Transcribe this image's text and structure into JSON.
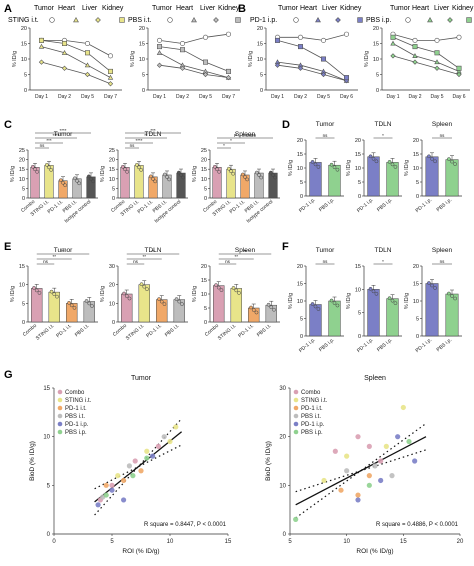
{
  "panel_letters": [
    "A",
    "B",
    "C",
    "D",
    "E",
    "F",
    "G"
  ],
  "colors": {
    "combo": "#d9a0b3",
    "sting": "#e8e48a",
    "pd1it": "#f0a868",
    "pbsit": "#bdbdbd",
    "isotype": "#555555",
    "pd1ip": "#7b7fc6",
    "pbsip": "#8fd18f",
    "line": "#555555"
  },
  "legends": {
    "a": {
      "group": "STING i.t.",
      "organs": [
        "Tumor",
        "Heart",
        "Liver",
        "Kidney"
      ]
    },
    "a2": {
      "group": "PBS i.t.",
      "organs": [
        "Tumor",
        "Heart",
        "Liver",
        "Kidney"
      ]
    },
    "b": {
      "group": "PD-1 i.p.",
      "organs": [
        "Tumor",
        "Heart",
        "Liver",
        "Kidney"
      ]
    },
    "b2": {
      "group": "PBS i.p.",
      "organs": [
        "Tumor",
        "Heart",
        "Liver",
        "Kidney"
      ]
    }
  },
  "g_legend": [
    "Combo",
    "STING i.t.",
    "PD-1 i.t.",
    "PBS i.t.",
    "PD-1 i.p.",
    "PBS i.p."
  ],
  "chart_data": [
    {
      "id": "A1",
      "type": "line",
      "panel": "A",
      "legend_group": "STING i.t.",
      "ylabel": "% ID/g",
      "categories": [
        "Day 1",
        "Day 2",
        "Day 5",
        "Day 7"
      ],
      "ylim": [
        0,
        20
      ],
      "yticks": [
        0,
        5,
        10,
        15,
        20
      ],
      "series": [
        {
          "name": "Tumor",
          "values": [
            16,
            16,
            15,
            11
          ]
        },
        {
          "name": "Heart",
          "values": [
            14,
            12,
            8,
            4
          ]
        },
        {
          "name": "Liver",
          "values": [
            9,
            7,
            5,
            2
          ]
        },
        {
          "name": "Kidney",
          "values": [
            16,
            15,
            12,
            6
          ]
        }
      ]
    },
    {
      "id": "A2",
      "type": "line",
      "panel": "A",
      "legend_group": "PBS i.t.",
      "ylabel": "% ID/g",
      "categories": [
        "Day 1",
        "Day 2",
        "Day 5",
        "Day 7"
      ],
      "ylim": [
        0,
        20
      ],
      "yticks": [
        0,
        5,
        10,
        15,
        20
      ],
      "series": [
        {
          "name": "Tumor",
          "values": [
            16,
            15,
            17,
            18
          ]
        },
        {
          "name": "Heart",
          "values": [
            12,
            8,
            6,
            4
          ]
        },
        {
          "name": "Liver",
          "values": [
            8,
            7,
            5,
            4
          ]
        },
        {
          "name": "Kidney",
          "values": [
            14,
            13,
            9,
            6
          ]
        }
      ]
    },
    {
      "id": "B1",
      "type": "line",
      "panel": "B",
      "legend_group": "PD-1 i.p.",
      "ylabel": "% ID/g",
      "categories": [
        "Day 1",
        "Day 2",
        "Day 5",
        "Day 6"
      ],
      "ylim": [
        0,
        20
      ],
      "yticks": [
        0,
        5,
        10,
        15,
        20
      ],
      "series": [
        {
          "name": "Tumor",
          "values": [
            17,
            17,
            16,
            18
          ]
        },
        {
          "name": "Heart",
          "values": [
            9,
            8,
            6,
            3
          ]
        },
        {
          "name": "Liver",
          "values": [
            8,
            7,
            5,
            3
          ]
        },
        {
          "name": "Kidney",
          "values": [
            16,
            14,
            10,
            4
          ]
        }
      ]
    },
    {
      "id": "B2",
      "type": "line",
      "panel": "B",
      "legend_group": "PBS i.p.",
      "ylabel": "% ID/g",
      "categories": [
        "Day 1",
        "Day 2",
        "Day 5",
        "Day 6"
      ],
      "ylim": [
        0,
        20
      ],
      "yticks": [
        0,
        5,
        10,
        15,
        20
      ],
      "series": [
        {
          "name": "Tumor",
          "values": [
            18,
            16,
            16,
            17
          ]
        },
        {
          "name": "Heart",
          "values": [
            15,
            11,
            9,
            6
          ]
        },
        {
          "name": "Liver",
          "values": [
            11,
            9,
            7,
            5
          ]
        },
        {
          "name": "Kidney",
          "values": [
            17,
            14,
            12,
            7
          ]
        }
      ]
    },
    {
      "id": "C1",
      "type": "bar",
      "panel": "C",
      "title": "Tumor",
      "ylabel": "% ID/g",
      "ylim": [
        0,
        25
      ],
      "yticks": [
        0,
        5,
        10,
        15,
        20,
        25
      ],
      "categories": [
        "Combo",
        "STING i.t.",
        "PD-1 i.t.",
        "PBS i.t.",
        "Isotype control"
      ],
      "values": [
        16,
        17,
        9,
        10,
        11
      ],
      "color_keys": [
        "combo",
        "sting",
        "pd1it",
        "pbsit",
        "isotype"
      ],
      "sig": [
        {
          "a": 0,
          "b": 1,
          "text": "ns"
        },
        {
          "a": 0,
          "b": 2,
          "text": "***"
        },
        {
          "a": 0,
          "b": 3,
          "text": "****"
        },
        {
          "a": 0,
          "b": 4,
          "text": "****"
        }
      ]
    },
    {
      "id": "C2",
      "type": "bar",
      "panel": "C",
      "title": "TDLN",
      "ylabel": "% ID/g",
      "ylim": [
        0,
        25
      ],
      "yticks": [
        0,
        5,
        10,
        15,
        20,
        25
      ],
      "categories": [
        "Combo",
        "STING i.t.",
        "PD-1 i.t.",
        "PBS i.t.",
        "Isotype control"
      ],
      "values": [
        16,
        17,
        11,
        12,
        13
      ],
      "color_keys": [
        "combo",
        "sting",
        "pd1it",
        "pbsit",
        "isotype"
      ],
      "sig": [
        {
          "a": 0,
          "b": 1,
          "text": "ns"
        },
        {
          "a": 0,
          "b": 2,
          "text": "****"
        },
        {
          "a": 0,
          "b": 3,
          "text": "**"
        },
        {
          "a": 0,
          "b": 4,
          "text": "***"
        }
      ]
    },
    {
      "id": "C3",
      "type": "bar",
      "panel": "C",
      "title": "Spleen",
      "ylabel": "% ID/g",
      "ylim": [
        0,
        25
      ],
      "yticks": [
        0,
        5,
        10,
        15,
        20,
        25
      ],
      "categories": [
        "Combo",
        "STING i.t.",
        "PD-1 i.t.",
        "PBS i.t.",
        "Isotype control"
      ],
      "values": [
        16,
        15,
        12,
        13,
        13
      ],
      "color_keys": [
        "combo",
        "sting",
        "pd1it",
        "pbsit",
        "isotype"
      ],
      "sig": [
        {
          "a": 0,
          "b": 1,
          "text": "*"
        },
        {
          "a": 0,
          "b": 2,
          "text": "*"
        },
        {
          "a": 0,
          "b": 4,
          "text": "P = 0.0809"
        }
      ]
    },
    {
      "id": "D1",
      "type": "bar",
      "panel": "D",
      "title": "Tumor",
      "ylabel": "% ID/g",
      "ylim": [
        0,
        20
      ],
      "yticks": [
        0,
        5,
        10,
        15,
        20
      ],
      "categories": [
        "PD-1 i.p.",
        "PBS i.p."
      ],
      "values": [
        12,
        11
      ],
      "color_keys": [
        "pd1ip",
        "pbsip"
      ],
      "sig": [
        {
          "a": 0,
          "b": 1,
          "text": "ns"
        }
      ]
    },
    {
      "id": "D2",
      "type": "bar",
      "panel": "D",
      "title": "TDLN",
      "ylabel": "% ID/g",
      "ylim": [
        0,
        20
      ],
      "yticks": [
        0,
        5,
        10,
        15,
        20
      ],
      "categories": [
        "PD-1 i.p.",
        "PBS i.p."
      ],
      "values": [
        14,
        12
      ],
      "color_keys": [
        "pd1ip",
        "pbsip"
      ],
      "sig": [
        {
          "a": 0,
          "b": 1,
          "text": "*"
        }
      ]
    },
    {
      "id": "D3",
      "type": "bar",
      "panel": "D",
      "title": "Spleen",
      "ylabel": "% ID/g",
      "ylim": [
        0,
        20
      ],
      "yticks": [
        0,
        5,
        10,
        15,
        20
      ],
      "categories": [
        "PD-1 i.p.",
        "PBS i.p."
      ],
      "values": [
        14,
        13
      ],
      "color_keys": [
        "pd1ip",
        "pbsip"
      ],
      "sig": [
        {
          "a": 0,
          "b": 1,
          "text": "ns"
        }
      ]
    },
    {
      "id": "E1",
      "type": "bar",
      "panel": "E",
      "title": "Tumor",
      "ylabel": "% ID/g",
      "ylim": [
        0,
        15
      ],
      "yticks": [
        0,
        5,
        10,
        15
      ],
      "categories": [
        "Combo",
        "STING i.t.",
        "PD-1 i.t.",
        "PBS i.t."
      ],
      "values": [
        9,
        8,
        5,
        5.5
      ],
      "color_keys": [
        "combo",
        "sting",
        "pd1it",
        "pbsit"
      ],
      "sig": [
        {
          "a": 0,
          "b": 1,
          "text": "ns"
        },
        {
          "a": 0,
          "b": 2,
          "text": "**"
        },
        {
          "a": 0,
          "b": 3,
          "text": "**"
        }
      ]
    },
    {
      "id": "E2",
      "type": "bar",
      "panel": "E",
      "title": "TDLN",
      "ylabel": "% ID/g",
      "ylim": [
        0,
        30
      ],
      "yticks": [
        0,
        10,
        20,
        30
      ],
      "categories": [
        "Combo",
        "STING i.t.",
        "PD-1 i.t.",
        "PBS i.t."
      ],
      "values": [
        15,
        20,
        12,
        12
      ],
      "color_keys": [
        "combo",
        "sting",
        "pd1it",
        "pbsit"
      ],
      "sig": [
        {
          "a": 0,
          "b": 1,
          "text": "ns"
        },
        {
          "a": 0,
          "b": 2,
          "text": "**"
        },
        {
          "a": 0,
          "b": 3,
          "text": "**"
        }
      ]
    },
    {
      "id": "E3",
      "type": "bar",
      "panel": "E",
      "title": "Spleen",
      "ylabel": "% ID/g",
      "ylim": [
        0,
        20
      ],
      "yticks": [
        0,
        5,
        10,
        15,
        20
      ],
      "categories": [
        "Combo",
        "STING i.t.",
        "PD-1 i.t.",
        "PBS i.t."
      ],
      "values": [
        13,
        12,
        5,
        6
      ],
      "color_keys": [
        "combo",
        "sting",
        "pd1it",
        "pbsit"
      ],
      "sig": [
        {
          "a": 0,
          "b": 1,
          "text": "ns"
        },
        {
          "a": 0,
          "b": 2,
          "text": "**"
        },
        {
          "a": 0,
          "b": 3,
          "text": "**"
        }
      ]
    },
    {
      "id": "F1",
      "type": "bar",
      "panel": "F",
      "title": "Tumor",
      "ylabel": "% ID/g",
      "ylim": [
        0,
        20
      ],
      "yticks": [
        0,
        5,
        10,
        15,
        20
      ],
      "categories": [
        "PD-1 i.p.",
        "PBS i.p."
      ],
      "values": [
        9,
        10
      ],
      "color_keys": [
        "pd1ip",
        "pbsip"
      ],
      "sig": [
        {
          "a": 0,
          "b": 1,
          "text": "ns"
        }
      ]
    },
    {
      "id": "F2",
      "type": "bar",
      "panel": "F",
      "title": "TDLN",
      "ylabel": "% ID/g",
      "ylim": [
        0,
        15
      ],
      "yticks": [
        0,
        5,
        10,
        15
      ],
      "categories": [
        "PD-1 i.p.",
        "PBS i.p."
      ],
      "values": [
        10,
        8
      ],
      "color_keys": [
        "pd1ip",
        "pbsip"
      ],
      "sig": [
        {
          "a": 0,
          "b": 1,
          "text": "*"
        }
      ]
    },
    {
      "id": "F3",
      "type": "bar",
      "panel": "F",
      "title": "Spleen",
      "ylabel": "% ID/g",
      "ylim": [
        0,
        20
      ],
      "yticks": [
        0,
        5,
        10,
        15,
        20
      ],
      "categories": [
        "PD-1 i.p.",
        "PBS i.p."
      ],
      "values": [
        15,
        12
      ],
      "color_keys": [
        "pd1ip",
        "pbsip"
      ],
      "sig": [
        {
          "a": 0,
          "b": 1,
          "text": "ns"
        }
      ]
    },
    {
      "id": "G1",
      "type": "scatter",
      "panel": "G",
      "title": "Tumor",
      "xlabel": "ROI (% ID/g)",
      "ylabel": "BioD (% ID/g)",
      "xlim": [
        0,
        15
      ],
      "ylim": [
        0,
        15
      ],
      "xticks": [
        0,
        5,
        10,
        15
      ],
      "yticks": [
        0,
        5,
        10,
        15
      ],
      "annotation": "R square = 0.8447, P < 0.0001",
      "fit": {
        "x0": 3.5,
        "y0": 3.3,
        "x1": 11,
        "y1": 10.5
      },
      "points": [
        {
          "x": 4,
          "y": 3.5,
          "g": "combo"
        },
        {
          "x": 5,
          "y": 5,
          "g": "combo"
        },
        {
          "x": 7,
          "y": 7.5,
          "g": "combo"
        },
        {
          "x": 9,
          "y": 9,
          "g": "combo"
        },
        {
          "x": 5.5,
          "y": 6,
          "g": "sting"
        },
        {
          "x": 8,
          "y": 8.5,
          "g": "sting"
        },
        {
          "x": 10,
          "y": 9.5,
          "g": "sting"
        },
        {
          "x": 10.5,
          "y": 11,
          "g": "sting"
        },
        {
          "x": 4.5,
          "y": 5,
          "g": "pd1it"
        },
        {
          "x": 6,
          "y": 5.5,
          "g": "pd1it"
        },
        {
          "x": 7.5,
          "y": 6.5,
          "g": "pd1it"
        },
        {
          "x": 4.2,
          "y": 3.8,
          "g": "pbsit"
        },
        {
          "x": 6.5,
          "y": 7,
          "g": "pbsit"
        },
        {
          "x": 9.5,
          "y": 10,
          "g": "pbsit"
        },
        {
          "x": 3.8,
          "y": 3,
          "g": "pd1ip"
        },
        {
          "x": 5,
          "y": 4.5,
          "g": "pd1ip"
        },
        {
          "x": 6,
          "y": 3.5,
          "g": "pd1ip"
        },
        {
          "x": 8.5,
          "y": 8,
          "g": "pd1ip"
        },
        {
          "x": 4.5,
          "y": 4,
          "g": "pbsip"
        },
        {
          "x": 6.8,
          "y": 6,
          "g": "pbsip"
        },
        {
          "x": 8,
          "y": 7.8,
          "g": "pbsip"
        }
      ]
    },
    {
      "id": "G2",
      "type": "scatter",
      "panel": "G",
      "title": "Spleen",
      "xlabel": "ROI (% ID/g)",
      "ylabel": "BioD (% ID/g)",
      "xlim": [
        5,
        20
      ],
      "ylim": [
        0,
        30
      ],
      "xticks": [
        5,
        10,
        15,
        20
      ],
      "yticks": [
        0,
        10,
        20,
        30
      ],
      "annotation": "R square = 0.4886, P < 0.0001",
      "fit": {
        "x0": 5.5,
        "y0": 6,
        "x1": 17,
        "y1": 20
      },
      "points": [
        {
          "x": 9,
          "y": 17,
          "g": "combo"
        },
        {
          "x": 12,
          "y": 18,
          "g": "combo"
        },
        {
          "x": 13,
          "y": 15,
          "g": "combo"
        },
        {
          "x": 11,
          "y": 20,
          "g": "combo"
        },
        {
          "x": 8,
          "y": 11,
          "g": "sting"
        },
        {
          "x": 13.5,
          "y": 18,
          "g": "sting"
        },
        {
          "x": 15,
          "y": 26,
          "g": "sting"
        },
        {
          "x": 10,
          "y": 16,
          "g": "sting"
        },
        {
          "x": 9.5,
          "y": 9,
          "g": "pd1it"
        },
        {
          "x": 11,
          "y": 8,
          "g": "pd1it"
        },
        {
          "x": 12,
          "y": 12,
          "g": "pd1it"
        },
        {
          "x": 10,
          "y": 13,
          "g": "pbsit"
        },
        {
          "x": 12.5,
          "y": 14,
          "g": "pbsit"
        },
        {
          "x": 14,
          "y": 12,
          "g": "pbsit"
        },
        {
          "x": 11,
          "y": 7,
          "g": "pd1ip"
        },
        {
          "x": 13,
          "y": 11,
          "g": "pd1ip"
        },
        {
          "x": 16,
          "y": 15,
          "g": "pd1ip"
        },
        {
          "x": 14.5,
          "y": 20,
          "g": "pd1ip"
        },
        {
          "x": 5.5,
          "y": 3,
          "g": "pbsip"
        },
        {
          "x": 12,
          "y": 10,
          "g": "pbsip"
        },
        {
          "x": 15.5,
          "y": 19,
          "g": "pbsip"
        }
      ]
    }
  ]
}
